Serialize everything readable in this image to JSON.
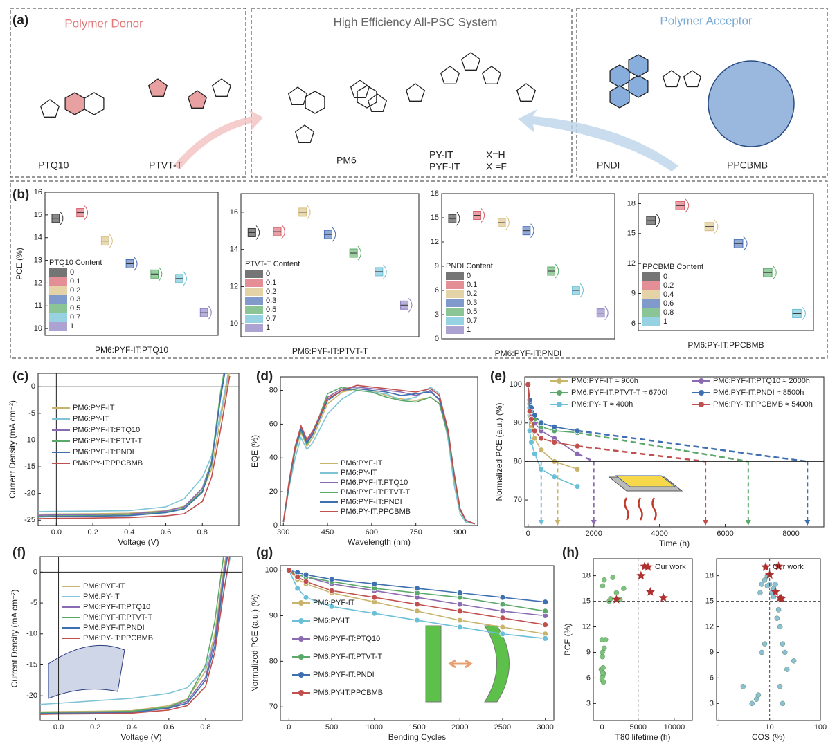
{
  "panel_labels": {
    "a": "(a)",
    "b": "(b)",
    "c": "(c)",
    "d": "(d)",
    "e": "(e)",
    "f": "(f)",
    "g": "(g)",
    "h": "(h)"
  },
  "structures": {
    "donor_title": "Polymer Donor",
    "system_title": "High Efficiency All-PSC System",
    "acceptor_title": "Polymer Acceptor",
    "names": [
      "PTQ10",
      "PTVT-T",
      "PM6",
      "PY-IT",
      "PYF-IT",
      "PNDI",
      "PPCBMB"
    ],
    "substituents": [
      "X=H",
      "X =F"
    ]
  },
  "chart_data": [
    {
      "type": "box",
      "ylabel": "PCE (%)",
      "xlabel": "PM6:PYF-IT:PTQ10",
      "legend_title": "PTQ10 Content",
      "categories": [
        "0",
        "0.1",
        "0.2",
        "0.3",
        "0.5",
        "0.7",
        "1"
      ],
      "values": [
        14.85,
        15.1,
        13.85,
        12.85,
        12.4,
        12.2,
        10.7
      ],
      "colors": [
        "#3a3a3a",
        "#d9606a",
        "#d8c080",
        "#4a6fb5",
        "#5aad68",
        "#6bbfd6",
        "#8a7cc0"
      ],
      "ylim": [
        9.7,
        16
      ],
      "yticks": [
        10,
        11,
        12,
        13,
        14,
        15,
        16
      ]
    },
    {
      "type": "box",
      "xlabel": "PM6:PYF-IT:PTVT-T",
      "legend_title": "PTVT-T Content",
      "categories": [
        "0",
        "0.1",
        "0.2",
        "0.3",
        "0.5",
        "0.7",
        "1"
      ],
      "values": [
        14.9,
        14.95,
        16.0,
        14.8,
        13.8,
        12.8,
        11.0
      ],
      "colors": [
        "#3a3a3a",
        "#d9606a",
        "#d8c080",
        "#4a6fb5",
        "#5aad68",
        "#6bbfd6",
        "#8a7cc0"
      ],
      "ylim": [
        9.3,
        17
      ],
      "yticks": [
        10,
        12,
        14,
        16
      ]
    },
    {
      "type": "box",
      "xlabel": "PM6:PYF-IT:PNDI",
      "legend_title": "PNDI Content",
      "categories": [
        "0",
        "0.1",
        "0.2",
        "0.3",
        "0.5",
        "0.7",
        "1"
      ],
      "values": [
        14.9,
        15.3,
        14.4,
        13.4,
        8.4,
        6.0,
        3.2
      ],
      "colors": [
        "#3a3a3a",
        "#d9606a",
        "#d8c080",
        "#4a6fb5",
        "#5aad68",
        "#6bbfd6",
        "#8a7cc0"
      ],
      "ylim": [
        0,
        18
      ],
      "yticks": [
        0,
        3,
        6,
        9,
        12,
        15,
        18
      ]
    },
    {
      "type": "box",
      "xlabel": "PM6:PY-IT:PPCBMB",
      "legend_title": "PPCBMB Content",
      "categories": [
        "0",
        "0.2",
        "0.4",
        "0.6",
        "0.8",
        "1"
      ],
      "values": [
        16.3,
        17.8,
        15.7,
        14.0,
        11.1,
        7.0
      ],
      "colors": [
        "#3a3a3a",
        "#d9606a",
        "#d8c080",
        "#4a6fb5",
        "#5aad68",
        "#6bbfd6"
      ],
      "ylim": [
        5.3,
        19
      ],
      "yticks": [
        6,
        9,
        12,
        15,
        18
      ]
    },
    {
      "type": "line",
      "xlabel": "Voltage (V)",
      "ylabel": "Current Density (mA cm⁻²)",
      "x": [
        -0.1,
        0,
        0.2,
        0.4,
        0.6,
        0.7,
        0.8,
        0.85,
        0.9,
        0.95
      ],
      "series": [
        {
          "name": "PM6:PYF-IT",
          "color": "#c8b46a",
          "values": [
            -23.9,
            -23.85,
            -23.8,
            -23.7,
            -23.2,
            -22.4,
            -19.5,
            -15.5,
            -6,
            3
          ]
        },
        {
          "name": "PM6:PY-IT",
          "color": "#7fc4d6",
          "values": [
            -23.4,
            -23.35,
            -23.3,
            -23.2,
            -22.5,
            -21.0,
            -17.0,
            -13,
            -5,
            4
          ]
        },
        {
          "name": "PM6:PYF-IT:PTQ10",
          "color": "#8a6ab0",
          "values": [
            -24.1,
            -24.0,
            -23.95,
            -23.85,
            -23.3,
            -22.5,
            -19.0,
            -14,
            -2,
            8
          ]
        },
        {
          "name": "PM6:PYF-IT:PTVT-T",
          "color": "#5aa86a",
          "values": [
            -24.3,
            -24.2,
            -24.15,
            -24.05,
            -23.5,
            -22.8,
            -19.5,
            -14,
            -1,
            9
          ]
        },
        {
          "name": "PM6:PYF-IT:PNDI",
          "color": "#3e6fb0",
          "values": [
            -24.4,
            -24.3,
            -24.25,
            -24.15,
            -23.6,
            -22.9,
            -19.8,
            -14.5,
            -2,
            8
          ]
        },
        {
          "name": "PM6:PY-IT:PPCBMB",
          "color": "#c0504d",
          "values": [
            -24.7,
            -24.65,
            -24.6,
            -24.5,
            -24.2,
            -23.8,
            -21.5,
            -17,
            -8,
            2
          ]
        }
      ],
      "xlim": [
        -0.1,
        1.0
      ],
      "xticks": [
        {
          "value": 0,
          "label": "0.0"
        },
        0.2,
        0.4,
        0.6,
        0.8
      ],
      "ylim": [
        -26,
        2.5
      ],
      "yticks": [
        0,
        -5,
        -10,
        -15,
        -20,
        -25
      ]
    },
    {
      "type": "line",
      "xlabel": "Wavelength (nm)",
      "ylabel": "EQE (%)",
      "x": [
        300,
        320,
        340,
        360,
        380,
        400,
        450,
        500,
        550,
        600,
        650,
        700,
        750,
        800,
        830,
        860,
        880,
        900,
        920,
        950
      ],
      "series": [
        {
          "name": "PM6:PYF-IT",
          "color": "#c8b46a",
          "values": [
            2,
            25,
            44,
            55,
            47,
            52,
            72,
            79,
            81,
            80,
            77,
            75,
            74,
            76,
            72,
            52,
            28,
            9,
            3,
            1
          ]
        },
        {
          "name": "PM6:PY-IT",
          "color": "#7fc4d6",
          "values": [
            2,
            23,
            40,
            52,
            45,
            49,
            66,
            75,
            80,
            79,
            78,
            74,
            76,
            82,
            78,
            50,
            24,
            7,
            2,
            1
          ]
        },
        {
          "name": "PM6:PYF-IT:PTQ10",
          "color": "#8a6ab0",
          "values": [
            2,
            26,
            46,
            58,
            50,
            55,
            76,
            81,
            82,
            81,
            80,
            79,
            77,
            80,
            74,
            54,
            30,
            10,
            3,
            1
          ]
        },
        {
          "name": "PM6:PYF-IT:PTVT-T",
          "color": "#5aa86a",
          "values": [
            2,
            24,
            45,
            56,
            48,
            54,
            78,
            82,
            80,
            79,
            76,
            74,
            73,
            76,
            72,
            53,
            29,
            9,
            3,
            1
          ]
        },
        {
          "name": "PM6:PYF-IT:PNDI",
          "color": "#3e6fb0",
          "values": [
            2,
            25,
            46,
            57,
            49,
            54,
            74,
            80,
            81,
            80,
            79,
            77,
            78,
            79,
            75,
            55,
            31,
            10,
            3,
            1
          ]
        },
        {
          "name": "PM6:PY-IT:PPCBMB",
          "color": "#c0504d",
          "values": [
            2,
            27,
            47,
            59,
            51,
            56,
            75,
            80,
            83,
            82,
            81,
            80,
            79,
            81,
            77,
            56,
            30,
            10,
            3,
            1
          ]
        }
      ],
      "xlim": [
        290,
        960
      ],
      "xticks": [
        300,
        450,
        600,
        750,
        900
      ],
      "ylim": [
        0,
        88
      ],
      "yticks": [
        0,
        20,
        40,
        60,
        80
      ]
    },
    {
      "type": "line",
      "markers": true,
      "xlabel": "Time (h)",
      "ylabel": "Normalized PCE (a.u.) (%)",
      "hline": 80,
      "x": [
        0,
        50,
        100,
        200,
        400,
        800,
        1500
      ],
      "series": [
        {
          "name": "PM6:PYF-IT  ≈ 900h",
          "color": "#c8b46a",
          "t80": 900,
          "values": [
            100,
            92,
            89,
            86,
            83,
            80,
            78
          ]
        },
        {
          "name": "PM6:PYF-IT:PTQ10 ≈ 2000h",
          "color": "#8a6ab0",
          "t80": 2000,
          "values": [
            100,
            94,
            92,
            90,
            88,
            86,
            82
          ]
        },
        {
          "name": "PM6:PYF-IT:PTVT-T ≈ 6700h",
          "color": "#5aa86a",
          "t80": 6700,
          "values": [
            100,
            95,
            93,
            91,
            89,
            88,
            87.5
          ]
        },
        {
          "name": "PM6:PYF-IT:PNDI ≈ 8500h",
          "color": "#3e6fb0",
          "t80": 8500,
          "values": [
            100,
            96,
            94,
            92,
            90,
            89,
            88
          ]
        },
        {
          "name": "PM6:PY-IT     ≈ 400h",
          "color": "#6bbfd6",
          "t80": 400,
          "values": [
            100,
            88,
            85,
            82,
            78,
            76,
            73.5
          ]
        },
        {
          "name": "PM6:PY-IT:PPCBMB ≈ 5400h",
          "color": "#c0504d",
          "t80": 5400,
          "values": [
            100,
            93,
            91,
            88,
            86,
            85,
            84
          ]
        }
      ],
      "xlim": [
        -100,
        9000
      ],
      "xticks": [
        0,
        2000,
        4000,
        6000,
        8000
      ],
      "ylim": [
        63,
        102
      ],
      "yticks": [
        70,
        80,
        90,
        100
      ]
    },
    {
      "type": "line",
      "xlabel": "Voltage (V)",
      "ylabel": "Current Density (mA cm⁻²)",
      "x": [
        -0.1,
        0,
        0.2,
        0.4,
        0.6,
        0.7,
        0.8,
        0.85,
        0.9,
        0.95
      ],
      "series": [
        {
          "name": "PM6:PYF-IT",
          "color": "#c8b46a",
          "values": [
            -22.6,
            -22.55,
            -22.5,
            -22.4,
            -21.6,
            -20.5,
            -16,
            -10,
            1,
            8
          ]
        },
        {
          "name": "PM6:PY-IT",
          "color": "#7fc4d6",
          "values": [
            -21.4,
            -21.2,
            -20.8,
            -20.4,
            -19.6,
            -18.7,
            -15.5,
            -11,
            -3,
            5
          ]
        },
        {
          "name": "PM6:PYF-IT:PTQ10",
          "color": "#8a6ab0",
          "values": [
            -22.8,
            -22.75,
            -22.7,
            -22.6,
            -21.9,
            -20.9,
            -17,
            -11,
            0,
            8
          ]
        },
        {
          "name": "PM6:PYF-IT:PTVT-T",
          "color": "#5aa86a",
          "values": [
            -22.7,
            -22.65,
            -22.6,
            -22.5,
            -21.8,
            -20.6,
            -15,
            -8,
            3,
            10
          ]
        },
        {
          "name": "PM6:PYF-IT:PNDI",
          "color": "#3e6fb0",
          "values": [
            -22.9,
            -22.85,
            -22.8,
            -22.7,
            -22.0,
            -21.2,
            -17.5,
            -12,
            -1,
            8
          ]
        },
        {
          "name": "PM6:PY-IT:PPCBMB",
          "color": "#c0504d",
          "values": [
            -23.0,
            -22.95,
            -22.9,
            -22.8,
            -22.3,
            -21.6,
            -18.5,
            -13,
            -3,
            6
          ]
        }
      ],
      "xlim": [
        -0.1,
        1.0
      ],
      "xticks": [
        {
          "value": 0,
          "label": "0.0"
        },
        0.2,
        0.4,
        0.6,
        0.8
      ],
      "ylim": [
        -24,
        2.5
      ],
      "yticks": [
        0,
        -5,
        -10,
        -15,
        -20
      ]
    },
    {
      "type": "line",
      "markers": true,
      "xlabel": "Bending Cycles",
      "ylabel": "Normalized PCE (a.u.) (%)",
      "x": [
        0,
        100,
        200,
        500,
        1000,
        1500,
        2000,
        2500,
        3000
      ],
      "series": [
        {
          "name": "PM6:PYF-IT",
          "color": "#c8b46a",
          "values": [
            100,
            98,
            97,
            95,
            93,
            91,
            89,
            87.5,
            86
          ]
        },
        {
          "name": "PM6:PY-IT",
          "color": "#6bbfd6",
          "values": [
            100,
            96,
            94,
            92,
            90.5,
            89,
            87.5,
            86,
            85
          ]
        },
        {
          "name": "PM6:PYF-IT:PTQ10",
          "color": "#8a6ab0",
          "values": [
            100,
            99,
            98.5,
            97,
            95.5,
            94,
            92.5,
            91,
            90
          ]
        },
        {
          "name": "PM6:PYF-IT:PTVT-T",
          "color": "#5aa86a",
          "values": [
            100,
            99,
            98.5,
            97.5,
            96,
            95,
            94,
            92.5,
            91
          ]
        },
        {
          "name": "PM6:PYF-IT:PNDI",
          "color": "#3e6fb0",
          "values": [
            100,
            99.5,
            99,
            98,
            97,
            96,
            95,
            94,
            93
          ]
        },
        {
          "name": "PM6:PY-IT:PPCBMB",
          "color": "#c0504d",
          "values": [
            100,
            98.5,
            97.5,
            95.5,
            94,
            92.5,
            91,
            89.5,
            88
          ]
        }
      ],
      "xlim": [
        -100,
        3100
      ],
      "xticks": [
        0,
        500,
        1000,
        1500,
        2000,
        2500,
        3000
      ],
      "ylim": [
        67,
        101
      ],
      "yticks": [
        70,
        80,
        90,
        100
      ]
    },
    {
      "type": "scatter",
      "xlabel": "T80 lifetime (h)",
      "ylabel": "PCE (%)",
      "vline": 5000,
      "hline": 15,
      "series": [
        {
          "color": "#7cc47c",
          "marker": "circle",
          "x": [
            0,
            100,
            200,
            -100,
            50,
            300,
            500,
            1000,
            2000,
            2500,
            3000,
            1500,
            0,
            100,
            200,
            50,
            150,
            0,
            100,
            300,
            1200
          ],
          "values": [
            5.8,
            6.2,
            6.5,
            7,
            8.5,
            9.5,
            10.5,
            15,
            16,
            15.2,
            16.5,
            17.8,
            6,
            6.6,
            5.5,
            9,
            7.2,
            10.5,
            16.8,
            17.5,
            15.3
          ]
        },
        {
          "name": "Our work",
          "color": "#b03030",
          "marker": "star",
          "x": [
            2000,
            5400,
            5900,
            6700,
            8500
          ],
          "values": [
            15.2,
            18,
            19.1,
            16.1,
            15.4
          ]
        }
      ],
      "xlim": [
        -1200,
        12500
      ],
      "xticks": [
        0,
        5000,
        10000
      ],
      "ylim": [
        1,
        20
      ],
      "yticks": [
        3,
        6,
        9,
        12,
        15,
        18
      ]
    },
    {
      "type": "scatter",
      "xscale": "log",
      "xlabel": "COS (%)",
      "vline": 10,
      "hline": 15,
      "series": [
        {
          "color": "#8cc0d8",
          "marker": "circle",
          "x": [
            3,
            4.5,
            5.5,
            6,
            7,
            8,
            7,
            8,
            9,
            10,
            11,
            12,
            13,
            14,
            15,
            16,
            18,
            20,
            22,
            16,
            18,
            30,
            12,
            9,
            6.5
          ],
          "values": [
            5,
            3,
            3.5,
            4,
            9,
            10,
            17,
            17.5,
            18,
            17,
            16,
            16.5,
            17,
            13,
            14,
            12,
            10,
            9,
            7,
            5,
            3,
            8,
            15.5,
            16.8,
            16
          ]
        },
        {
          "name": "Our work",
          "color": "#b03030",
          "marker": "star",
          "x": [
            10,
            15,
            13,
            16,
            17
          ],
          "values": [
            18.1,
            19.1,
            16.1,
            15.4,
            15.3
          ]
        }
      ],
      "xlim": [
        0.9,
        100
      ],
      "xticks": [
        1,
        10,
        100
      ],
      "ylim": [
        1,
        20
      ],
      "yticks": [
        3,
        6,
        9,
        12,
        15,
        18
      ]
    }
  ]
}
